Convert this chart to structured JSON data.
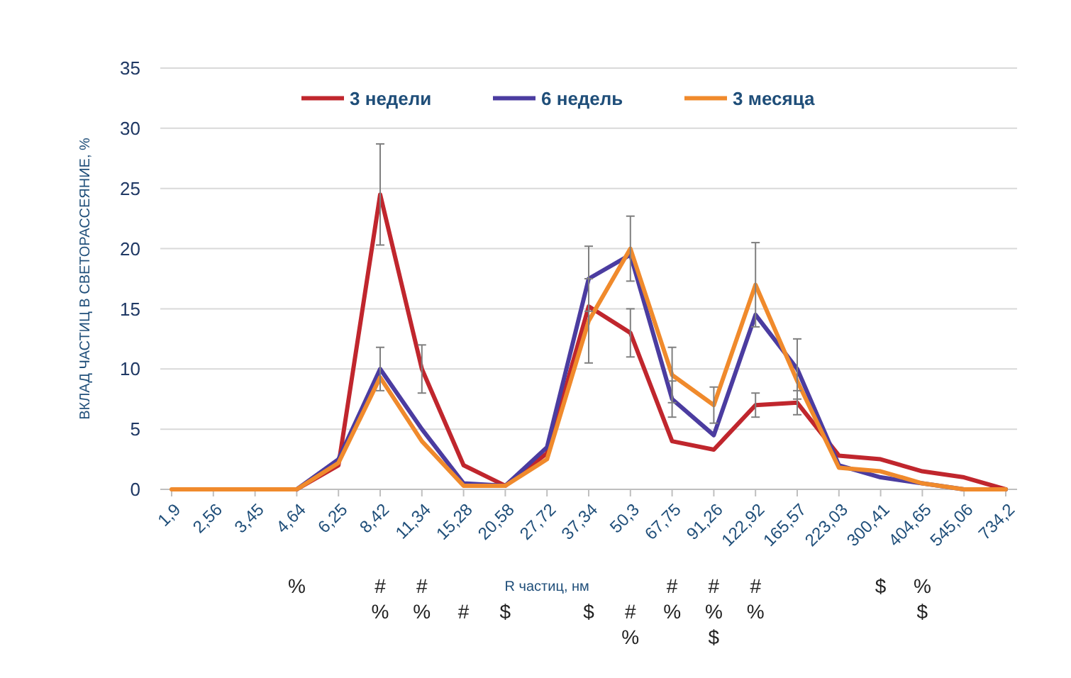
{
  "chart_data": {
    "type": "line",
    "xlabel": "R частиц, нм",
    "ylabel": "ВКЛАД ЧАСТИЦ В СВЕТОРАССЕЯНИЕ, %",
    "categories": [
      "1,9",
      "2,56",
      "3,45",
      "4,64",
      "6,25",
      "8,42",
      "11,34",
      "15,28",
      "20,58",
      "27,72",
      "37,34",
      "50,3",
      "67,75",
      "91,26",
      "122,92",
      "165,57",
      "223,03",
      "300,41",
      "404,65",
      "545,06",
      "734,2"
    ],
    "series": [
      {
        "name": "3 недели",
        "color": "#c0262d",
        "values": [
          null,
          null,
          null,
          0,
          2,
          24.5,
          10,
          2,
          0.3,
          3,
          15.2,
          13,
          4,
          3.3,
          7,
          7.2,
          2.8,
          2.5,
          1.5,
          1,
          0
        ],
        "errors": [
          null,
          null,
          null,
          null,
          null,
          4.2,
          2,
          null,
          null,
          null,
          null,
          2,
          null,
          null,
          1,
          1,
          null,
          null,
          null,
          null,
          null
        ]
      },
      {
        "name": "6 недель",
        "color": "#4b3ca0",
        "values": [
          null,
          null,
          null,
          0,
          2.5,
          10,
          5,
          0.5,
          0.3,
          3.5,
          17.5,
          19.5,
          7.5,
          4.5,
          14.5,
          10,
          2,
          1,
          0.5,
          0,
          0
        ],
        "errors": [
          null,
          null,
          null,
          null,
          null,
          1.8,
          null,
          null,
          null,
          null,
          2.7,
          null,
          1.5,
          null,
          null,
          2.5,
          null,
          null,
          null,
          null,
          null
        ]
      },
      {
        "name": "3 месяца",
        "color": "#f08a2c",
        "values": [
          0,
          0,
          0,
          0,
          2.2,
          9.3,
          4,
          0.3,
          0.3,
          2.5,
          14,
          20,
          9.5,
          7,
          17,
          9,
          1.8,
          1.5,
          0.5,
          0,
          0
        ],
        "errors": [
          null,
          null,
          null,
          null,
          null,
          null,
          null,
          null,
          null,
          null,
          3.5,
          2.7,
          2.3,
          1.5,
          3.5,
          null,
          null,
          null,
          null,
          null,
          null
        ]
      }
    ],
    "ylim": [
      0,
      35
    ],
    "yticks": [
      0,
      5,
      10,
      15,
      20,
      25,
      30,
      35
    ],
    "grid": "y",
    "legend": "top",
    "marker": "none",
    "line_style": "solid",
    "annotations": [
      "%",
      "#\n%",
      "#\n%",
      "#",
      "$",
      "$",
      "#\n%",
      "#\n%",
      "#\n%\n$",
      "#\n%",
      "$",
      "%\n$"
    ]
  }
}
